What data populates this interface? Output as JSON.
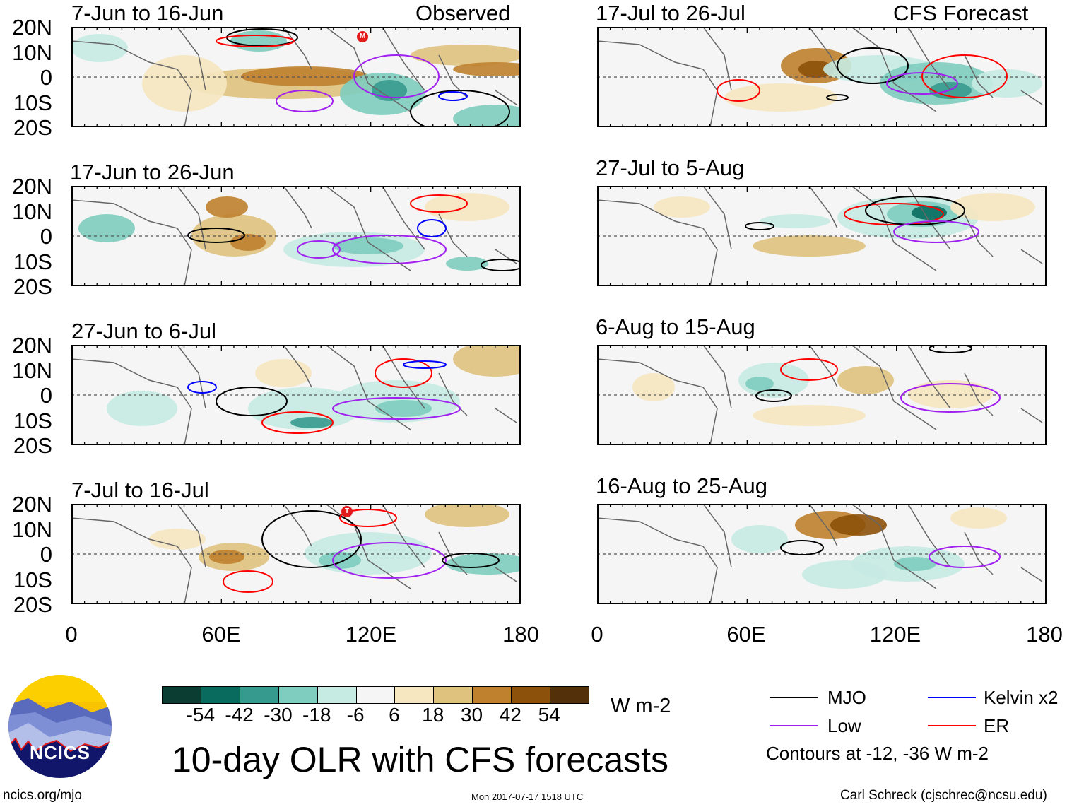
{
  "figure": {
    "title": "10-day OLR with CFS forecasts",
    "units": "W m-2",
    "timestamp": "Mon 2017-07-17 1518 UTC",
    "website": "ncics.org/mjo",
    "author": "Carl Schreck (cjschrec@ncsu.edu)",
    "logo_text": "NCICS"
  },
  "columns": {
    "left_label": "Observed",
    "right_label": "CFS Forecast"
  },
  "panels_left": [
    {
      "title": "7-Jun to 16-Jun"
    },
    {
      "title": "17-Jun to 26-Jun"
    },
    {
      "title": "27-Jun to 6-Jul"
    },
    {
      "title": "7-Jul to 16-Jul"
    }
  ],
  "panels_right": [
    {
      "title": "17-Jul to 26-Jul"
    },
    {
      "title": "27-Jul to 5-Aug"
    },
    {
      "title": "6-Aug to 15-Aug"
    },
    {
      "title": "16-Aug to 25-Aug"
    }
  ],
  "axes": {
    "lat_labels": [
      "20N",
      "10N",
      "0",
      "10S",
      "20S"
    ],
    "lon_labels": [
      "0",
      "60E",
      "120E",
      "180"
    ]
  },
  "colorbar": {
    "labels": [
      "-54",
      "-42",
      "-30",
      "-18",
      "-6",
      "6",
      "18",
      "30",
      "42",
      "54"
    ],
    "colors": [
      "#0b3d33",
      "#086b5e",
      "#369a8e",
      "#7ecdbf",
      "#c6ebe3",
      "#f5f5f5",
      "#f6e7c0",
      "#dfc27e",
      "#bf812d",
      "#8c510a",
      "#54300a"
    ]
  },
  "legend": {
    "items": [
      {
        "label": "MJO",
        "color": "#000000"
      },
      {
        "label": "Kelvin x2",
        "color": "#0000ff"
      },
      {
        "label": "Low",
        "color": "#a020f0"
      },
      {
        "label": "ER",
        "color": "#ff0000"
      }
    ],
    "note": "Contours at -12, -36 W m-2"
  },
  "storm_markers": [
    "M",
    "T"
  ]
}
